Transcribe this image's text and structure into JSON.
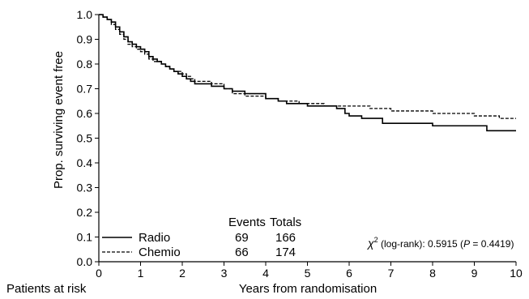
{
  "chart_data": {
    "type": "line",
    "title": "",
    "xlabel": "Years from randomisation",
    "ylabel": "Prop. surviving event free",
    "xlim": [
      0,
      10
    ],
    "ylim": [
      0,
      1.0
    ],
    "x_ticks": [
      "0",
      "1",
      "2",
      "3",
      "4",
      "5",
      "6",
      "7",
      "8",
      "9",
      "10"
    ],
    "y_ticks": [
      "0.0",
      "0.1",
      "0.2",
      "0.3",
      "0.4",
      "0.5",
      "0.6",
      "0.7",
      "0.8",
      "0.9",
      "1.0"
    ],
    "risk_label": "Patients at risk",
    "table": {
      "headers": [
        "Events",
        "Totals"
      ],
      "rows": [
        {
          "name": "Radio",
          "events": "69",
          "totals": "166"
        },
        {
          "name": "Chemio",
          "events": "66",
          "totals": "174"
        }
      ]
    },
    "test_text": {
      "chi": "χ",
      "sup": "2",
      "rest": " (log-rank): 0.5915 (",
      "p": "P",
      "pval": " = 0.4419)"
    },
    "series": [
      {
        "name": "Radio",
        "style": "solid",
        "x": [
          0,
          0.05,
          0.1,
          0.2,
          0.3,
          0.4,
          0.5,
          0.6,
          0.7,
          0.8,
          0.9,
          1.0,
          1.1,
          1.2,
          1.3,
          1.4,
          1.5,
          1.6,
          1.7,
          1.8,
          1.9,
          2.0,
          2.1,
          2.2,
          2.3,
          2.5,
          2.7,
          3.0,
          3.2,
          3.5,
          4.0,
          4.3,
          4.5,
          4.8,
          5.0,
          5.4,
          5.7,
          5.9,
          6.0,
          6.3,
          6.8,
          7.0,
          7.5,
          8.0,
          8.5,
          9.0,
          9.3,
          9.6,
          10.0
        ],
        "y": [
          1.0,
          1.0,
          0.99,
          0.98,
          0.97,
          0.95,
          0.93,
          0.91,
          0.89,
          0.88,
          0.87,
          0.86,
          0.85,
          0.83,
          0.82,
          0.81,
          0.8,
          0.79,
          0.78,
          0.77,
          0.76,
          0.75,
          0.74,
          0.73,
          0.72,
          0.72,
          0.71,
          0.7,
          0.69,
          0.68,
          0.66,
          0.65,
          0.64,
          0.64,
          0.63,
          0.63,
          0.62,
          0.6,
          0.59,
          0.58,
          0.56,
          0.56,
          0.56,
          0.55,
          0.55,
          0.55,
          0.53,
          0.53,
          0.53
        ]
      },
      {
        "name": "Chemio",
        "style": "dashed",
        "x": [
          0,
          0.05,
          0.1,
          0.2,
          0.3,
          0.4,
          0.5,
          0.6,
          0.7,
          0.8,
          0.9,
          1.0,
          1.1,
          1.2,
          1.3,
          1.4,
          1.5,
          1.6,
          1.7,
          1.8,
          1.9,
          2.0,
          2.1,
          2.2,
          2.3,
          2.5,
          2.7,
          3.0,
          3.2,
          3.5,
          4.0,
          4.3,
          4.5,
          4.8,
          5.0,
          5.4,
          5.7,
          5.9,
          6.2,
          6.5,
          7.0,
          7.5,
          8.0,
          8.5,
          9.0,
          9.3,
          9.6,
          10.0
        ],
        "y": [
          1.0,
          1.0,
          0.99,
          0.98,
          0.96,
          0.94,
          0.92,
          0.9,
          0.88,
          0.87,
          0.86,
          0.85,
          0.84,
          0.82,
          0.81,
          0.81,
          0.8,
          0.79,
          0.78,
          0.77,
          0.77,
          0.76,
          0.75,
          0.74,
          0.73,
          0.73,
          0.72,
          0.7,
          0.68,
          0.67,
          0.66,
          0.65,
          0.65,
          0.64,
          0.64,
          0.63,
          0.63,
          0.63,
          0.63,
          0.62,
          0.61,
          0.61,
          0.6,
          0.6,
          0.59,
          0.59,
          0.58,
          0.58
        ]
      }
    ]
  }
}
